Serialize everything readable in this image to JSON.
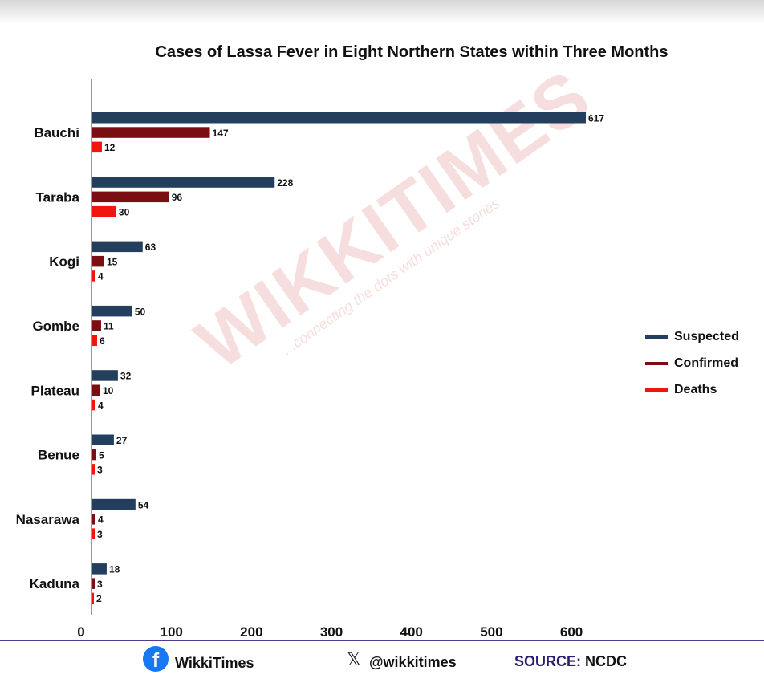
{
  "chart_data": {
    "type": "bar",
    "orientation": "horizontal",
    "title": "Cases of Lassa Fever in Eight Northern States within Three Months",
    "categories": [
      "Bauchi",
      "Taraba",
      "Kogi",
      "Gombe",
      "Plateau",
      "Benue",
      "Nasarawa",
      "Kaduna"
    ],
    "series": [
      {
        "name": "Suspected",
        "color": "#243f5e",
        "values": [
          617,
          228,
          63,
          50,
          32,
          27,
          54,
          18
        ]
      },
      {
        "name": "Confirmed",
        "color": "#7a0e12",
        "values": [
          147,
          96,
          15,
          11,
          10,
          5,
          4,
          3
        ]
      },
      {
        "name": "Deaths",
        "color": "#f2140f",
        "values": [
          12,
          30,
          4,
          6,
          4,
          3,
          3,
          2
        ]
      }
    ],
    "x_ticks": [
      0,
      100,
      200,
      300,
      400,
      500,
      600
    ],
    "xlim": [
      0,
      650
    ],
    "xlabel": "",
    "ylabel": "",
    "legend_position": "right",
    "grid": false,
    "data_labels": true
  },
  "watermark": {
    "brand": "WIKKITIMES",
    "tagline": "...connecting the dots with unique stories"
  },
  "footer": {
    "facebook_icon": "facebook-icon",
    "facebook_label": "WikkiTimes",
    "x_icon": "x-icon",
    "x_label": "@wikkitimes",
    "source_key": "SOURCE:",
    "source_value": "NCDC"
  }
}
